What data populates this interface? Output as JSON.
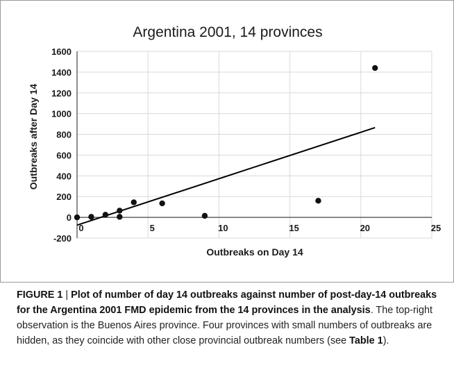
{
  "chart_data": {
    "type": "scatter",
    "title": "Argentina 2001, 14 provinces",
    "xlabel": "Outbreaks on Day 14",
    "ylabel": "Outbreaks after Day 14",
    "xlim": [
      0,
      25
    ],
    "ylim": [
      -200,
      1600
    ],
    "xticks": [
      "0",
      "5",
      "10",
      "15",
      "20",
      "25"
    ],
    "yticks": [
      "-200",
      "0",
      "200",
      "400",
      "600",
      "800",
      "1000",
      "1200",
      "1400",
      "1600"
    ],
    "grid": true,
    "points": [
      {
        "x": 0,
        "y": 0
      },
      {
        "x": 1,
        "y": 5
      },
      {
        "x": 2,
        "y": 25
      },
      {
        "x": 3,
        "y": 65
      },
      {
        "x": 3,
        "y": 5
      },
      {
        "x": 4,
        "y": 145
      },
      {
        "x": 6,
        "y": 135
      },
      {
        "x": 9,
        "y": 15
      },
      {
        "x": 17,
        "y": 160
      },
      {
        "x": 21,
        "y": 1440
      }
    ],
    "trendline": {
      "x": [
        0,
        21
      ],
      "y": [
        -75,
        865
      ]
    },
    "colors": {
      "marker": "#111111",
      "line": "#000000",
      "grid": "#d9d9d9"
    }
  },
  "caption": {
    "figure_label": "FIGURE 1",
    "separator": " | ",
    "bold_text": "Plot of number of day 14 outbreaks against number of post-day-14 outbreaks for the Argentina 2001 FMD epidemic from the 14 provinces in the analysis",
    "text_part1": ". The top-right observation is the Buenos Aires province. Four provinces with small numbers of outbreaks are hidden, as they coincide with other close provincial outbreak numbers (see ",
    "table_ref": "Table 1",
    "text_part2": ")."
  }
}
